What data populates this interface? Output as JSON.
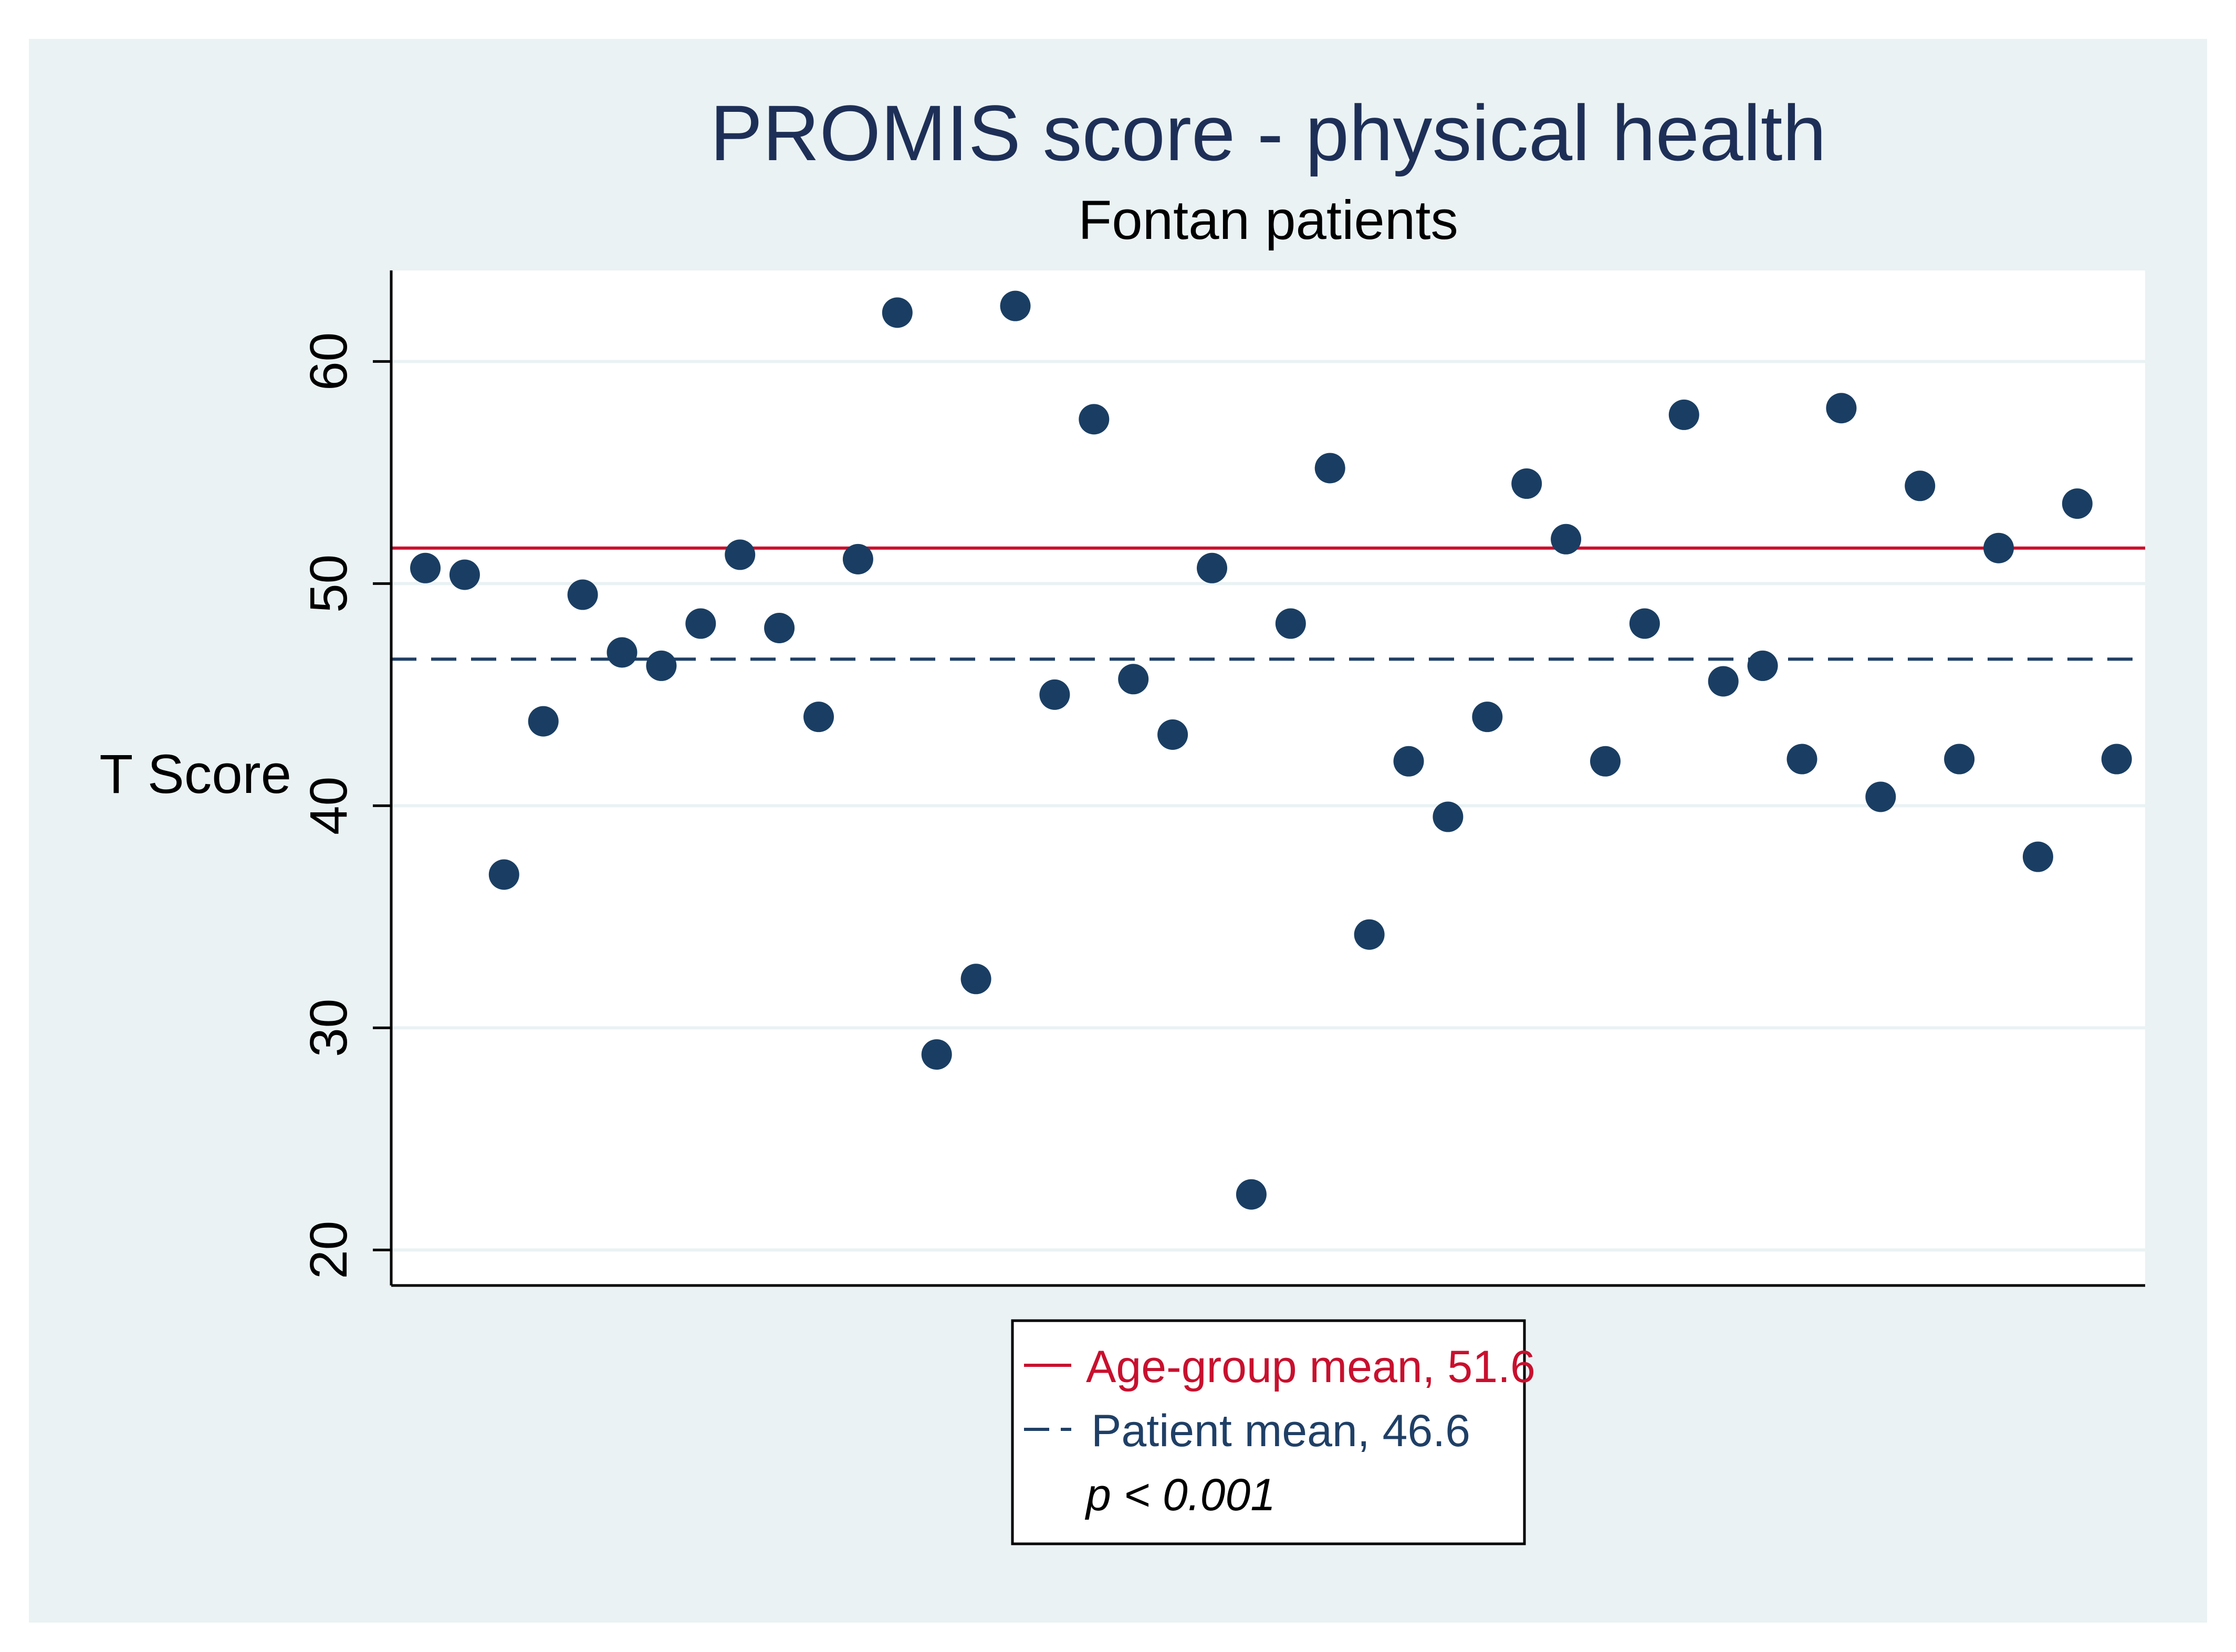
{
  "chart_data": {
    "type": "scatter",
    "title": "PROMIS score - physical health",
    "subtitle": "Fontan patients",
    "ylabel": "T Score",
    "xlabel": "",
    "ylim": [
      18.4,
      64.1
    ],
    "yticks": [
      20,
      30,
      40,
      50,
      60
    ],
    "grid": true,
    "x": [
      1,
      2,
      3,
      4,
      5,
      6,
      7,
      8,
      9,
      10,
      11,
      12,
      13,
      14,
      15,
      16,
      17,
      18,
      19,
      20,
      21,
      22,
      23,
      24,
      25,
      26,
      27,
      28,
      29,
      30,
      31,
      32,
      33,
      34,
      35,
      36,
      37,
      38,
      39,
      40,
      41,
      42,
      43,
      44
    ],
    "values": [
      50.7,
      50.4,
      36.9,
      43.8,
      49.5,
      46.9,
      46.3,
      48.2,
      51.3,
      48.0,
      44.0,
      51.1,
      62.2,
      28.8,
      32.2,
      62.5,
      45.0,
      57.4,
      45.7,
      43.2,
      50.7,
      22.5,
      48.2,
      55.2,
      34.2,
      42.0,
      39.5,
      44.0,
      54.5,
      52.0,
      42.0,
      48.2,
      57.6,
      45.6,
      46.3,
      42.1,
      57.9,
      40.4,
      54.4,
      42.1,
      51.6,
      37.7,
      53.6,
      42.1
    ],
    "reference_lines": [
      {
        "name": "age-group-mean",
        "value": 51.6,
        "style": "solid",
        "color": "#c8102e"
      },
      {
        "name": "patient-mean",
        "value": 46.6,
        "style": "dashed",
        "color": "#1f3f66"
      }
    ],
    "legend": {
      "position": "bottom-center",
      "entries": [
        {
          "label": "Age-group mean, 51.6",
          "color": "#c8102e",
          "style": "solid"
        },
        {
          "label": "Patient mean, 46.6",
          "color": "#1f3f66",
          "style": "dashed"
        }
      ],
      "note": "p < 0.001"
    },
    "colors": {
      "outer_background": "#eaf2f3",
      "plot_background": "#ffffff",
      "marker": "#1a3e63",
      "gridline": "#eaf2f3",
      "title": "#1e2f57",
      "text": "#000000"
    }
  }
}
